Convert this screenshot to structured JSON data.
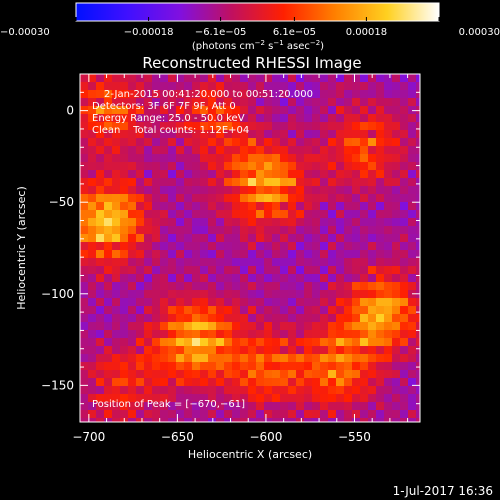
{
  "chart_data": {
    "type": "heatmap",
    "title": "Reconstructed RHESSI Image",
    "xlabel": "Heliocentric X (arcsec)",
    "ylabel": "Heliocentric Y (arcsec)",
    "xlim": [
      -705,
      -513
    ],
    "ylim": [
      -170,
      20
    ],
    "xticks": [
      -700,
      -650,
      -600,
      -550
    ],
    "xtick_labels": [
      "−700",
      "−650",
      "−600",
      "−550"
    ],
    "yticks": [
      0,
      -50,
      -100,
      -150
    ],
    "ytick_labels": [
      "0",
      "−50",
      "−100",
      "−150"
    ],
    "colorbar": {
      "range": [
        -0.0003,
        0.0003
      ],
      "ticks": [
        -0.0003,
        -0.00018,
        -6.1e-05,
        6.1e-05,
        0.00018,
        0.0003
      ],
      "tick_labels": [
        "−0.00030",
        "−0.00018",
        "−6.1e−05",
        "6.1e−05",
        "0.00018",
        "0.00030"
      ],
      "unit_main": "(photons cm",
      "unit_sup1": "−2",
      "unit_mid": " s",
      "unit_sup2": "−1",
      "unit_mid2": " asec",
      "unit_sup3": "−2",
      "unit_end": ")",
      "palette": [
        "#0010ff",
        "#4010ff",
        "#8010e0",
        "#c01060",
        "#ff2000",
        "#ff8000",
        "#ffd020",
        "#ffffff"
      ]
    },
    "annotations": [
      "2-Jan-2015 00:41:20.000 to 00:51:20.000",
      "Detectors: 3F 6F 7F 9F, Att 0",
      "Energy Range: 25.0 - 50.0 keV",
      "Clean    Total counts: 1.12E+04"
    ],
    "peak_label": "Position of Peak = [−670,−61]",
    "peak": [
      -670,
      -61
    ],
    "bright_regions": [
      {
        "x": -690,
        "y": -60,
        "intensity": 1.0
      },
      {
        "x": -640,
        "y": -125,
        "intensity": 0.95
      },
      {
        "x": -600,
        "y": -40,
        "intensity": 0.9
      },
      {
        "x": -535,
        "y": -110,
        "intensity": 0.85
      },
      {
        "x": -560,
        "y": -140,
        "intensity": 0.7
      },
      {
        "x": -690,
        "y": 0,
        "intensity": 0.6
      },
      {
        "x": -630,
        "y": -5,
        "intensity": 0.5
      },
      {
        "x": -545,
        "y": -20,
        "intensity": 0.55
      },
      {
        "x": -600,
        "y": -140,
        "intensity": 0.55
      },
      {
        "x": -680,
        "y": -150,
        "intensity": 0.45
      }
    ]
  },
  "footer": {
    "timestamp": "1-Jul-2017 16:36"
  }
}
